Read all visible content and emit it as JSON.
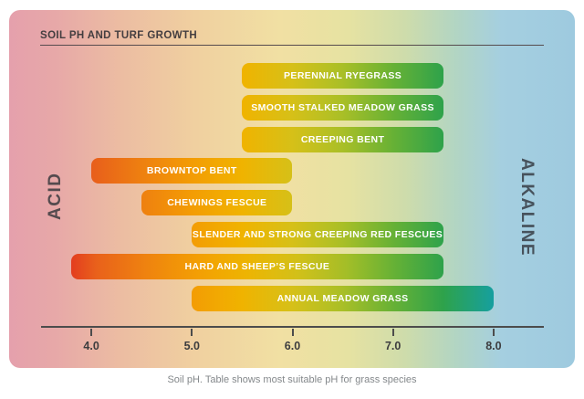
{
  "card": {
    "title": "SOIL PH AND TURF GROWTH"
  },
  "labels": {
    "acid": "ACID",
    "alkaline": "ALKALINE"
  },
  "caption": "Soil pH. Table shows most suitable pH for grass species",
  "chart_data": {
    "type": "bar",
    "orientation": "horizontal-range",
    "title": "SOIL PH AND TURF GROWTH",
    "xlabel": "Soil pH",
    "axis": {
      "min": 3.5,
      "max": 8.5,
      "ticks": [
        4.0,
        5.0,
        6.0,
        7.0,
        8.0
      ],
      "tick_labels": [
        "4.0",
        "5.0",
        "6.0",
        "7.0",
        "8.0"
      ]
    },
    "series": [
      {
        "label": "PERENNIAL RYEGRASS",
        "ph_min": 5.5,
        "ph_max": 7.5
      },
      {
        "label": "SMOOTH STALKED MEADOW GRASS",
        "ph_min": 5.5,
        "ph_max": 7.5
      },
      {
        "label": "CREEPING BENT",
        "ph_min": 5.5,
        "ph_max": 7.5
      },
      {
        "label": "BROWNTOP BENT",
        "ph_min": 4.0,
        "ph_max": 6.0
      },
      {
        "label": "CHEWINGS FESCUE",
        "ph_min": 4.5,
        "ph_max": 6.0
      },
      {
        "label": "SLENDER AND STRONG CREEPING RED FESCUES",
        "ph_min": 5.0,
        "ph_max": 7.5
      },
      {
        "label": "HARD AND SHEEP’S FESCUE",
        "ph_min": 3.8,
        "ph_max": 7.5
      },
      {
        "label": "ANNUAL MEADOW GRASS",
        "ph_min": 5.0,
        "ph_max": 8.0
      }
    ],
    "ph_color_scale": [
      [
        3.8,
        "#e33d1f"
      ],
      [
        4.0,
        "#e85e1c"
      ],
      [
        4.5,
        "#ee8010"
      ],
      [
        5.0,
        "#f39c04"
      ],
      [
        5.5,
        "#f0b300"
      ],
      [
        6.0,
        "#d6c018"
      ],
      [
        6.5,
        "#a9bf27"
      ],
      [
        7.0,
        "#67b135"
      ],
      [
        7.5,
        "#2ea24b"
      ],
      [
        8.0,
        "#169f9f"
      ]
    ],
    "background_colors": {
      "acid_end": "#e5a0ac",
      "neutral": "#f1e0a3",
      "alkaline_end": "#9ecadf"
    }
  }
}
